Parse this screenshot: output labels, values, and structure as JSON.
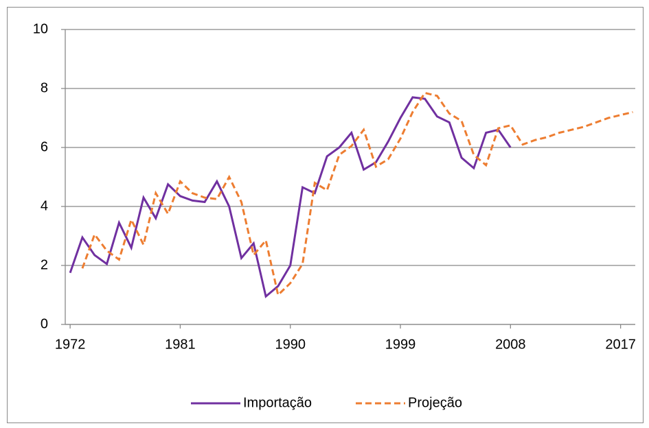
{
  "chart_data": {
    "type": "line",
    "x": [
      1972,
      1973,
      1974,
      1975,
      1976,
      1977,
      1978,
      1979,
      1980,
      1981,
      1982,
      1983,
      1984,
      1985,
      1986,
      1987,
      1988,
      1989,
      1990,
      1991,
      1992,
      1993,
      1994,
      1995,
      1996,
      1997,
      1998,
      1999,
      2000,
      2001,
      2002,
      2003,
      2004,
      2005,
      2006,
      2007,
      2008,
      2009,
      2010,
      2011,
      2012,
      2013,
      2014,
      2015,
      2016,
      2017,
      2018
    ],
    "series": [
      {
        "name": "Importação",
        "color": "#7030a0",
        "dash": false,
        "values": [
          1.75,
          2.95,
          2.35,
          2.05,
          3.45,
          2.6,
          4.3,
          3.6,
          4.75,
          4.35,
          4.2,
          4.15,
          4.85,
          4.0,
          2.25,
          2.75,
          0.95,
          1.3,
          2.0,
          4.65,
          4.45,
          5.7,
          6.0,
          6.5,
          5.25,
          5.5,
          6.2,
          7.0,
          7.7,
          7.65,
          7.05,
          6.85,
          5.65,
          5.3,
          6.5,
          6.6,
          6.0,
          null,
          null,
          null,
          null,
          null,
          null,
          null,
          null,
          null,
          null
        ]
      },
      {
        "name": "Projeção",
        "color": "#ed7d31",
        "dash": true,
        "values": [
          null,
          1.9,
          3.05,
          2.5,
          2.2,
          3.55,
          2.7,
          4.45,
          3.75,
          4.85,
          4.45,
          4.3,
          4.25,
          5.0,
          4.15,
          2.35,
          2.85,
          1.0,
          1.4,
          2.05,
          4.8,
          4.55,
          5.75,
          6.05,
          6.6,
          5.35,
          5.6,
          6.3,
          7.2,
          7.85,
          7.75,
          7.15,
          6.9,
          5.75,
          5.4,
          6.65,
          6.75,
          6.1,
          6.25,
          6.35,
          6.5,
          6.6,
          6.7,
          6.85,
          7.0,
          7.1,
          7.2
        ]
      }
    ],
    "xlim": [
      1971.6,
      2018.2
    ],
    "xticks": [
      1972,
      1981,
      1990,
      1999,
      2008,
      2017
    ],
    "ylim": [
      0,
      10
    ],
    "yticks": [
      0,
      2,
      4,
      6,
      8,
      10
    ],
    "grid": true,
    "legend": "bottom"
  }
}
